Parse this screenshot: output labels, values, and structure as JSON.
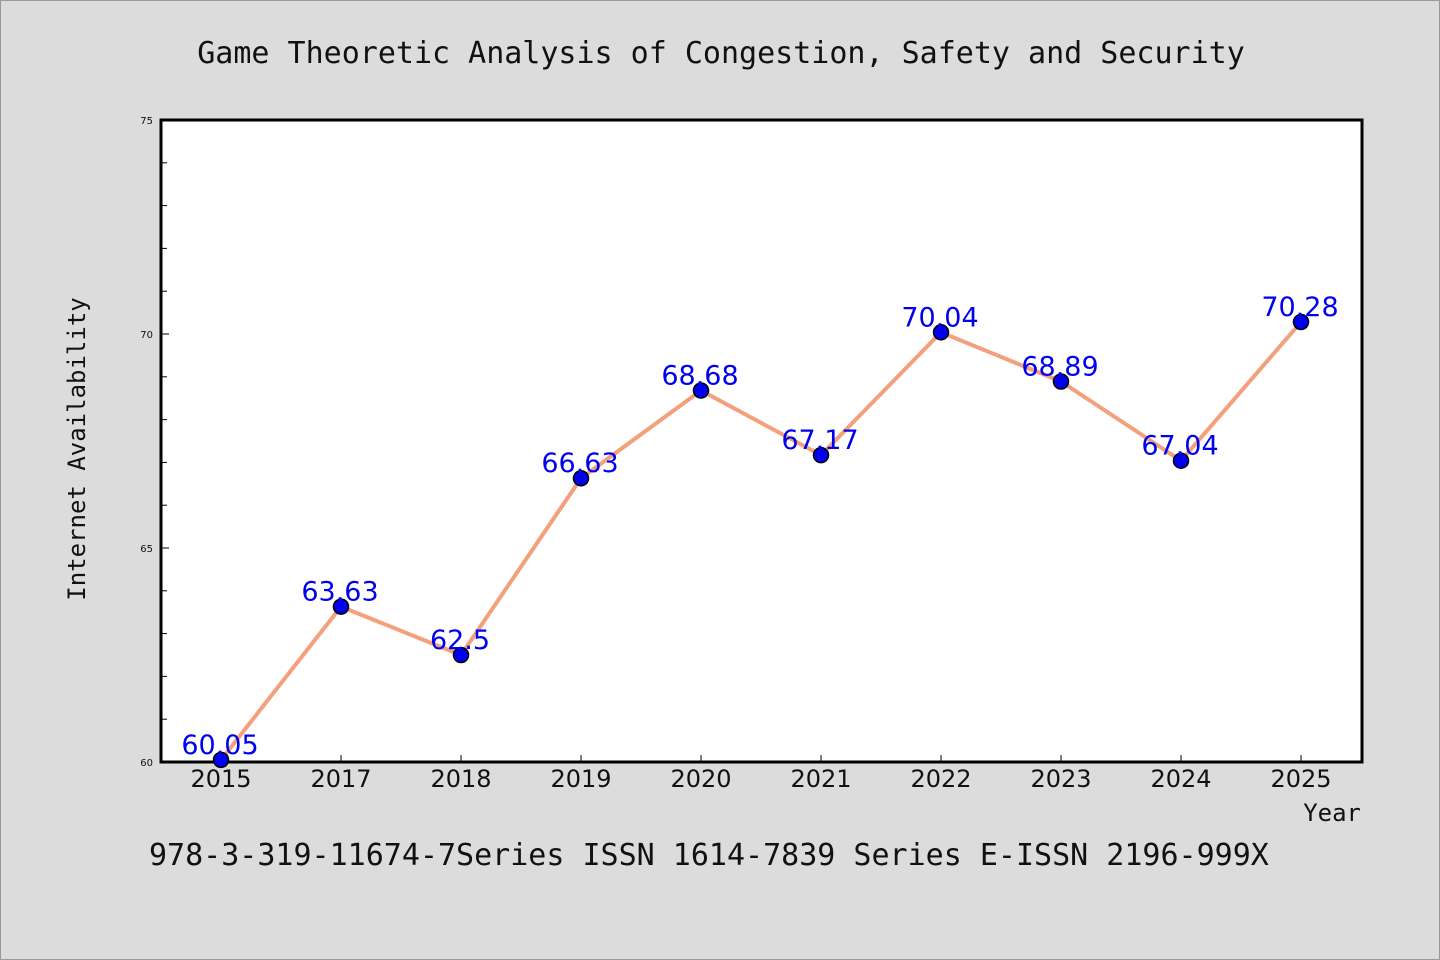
{
  "colors": {
    "background": "#dcdcdc",
    "plot_background": "#ffffff",
    "line": "#f4a07c",
    "marker": "#0000ee",
    "data_label": "#0000ee",
    "text": "#111111"
  },
  "chart_data": {
    "type": "line",
    "title": "Game Theoretic Analysis of Congestion, Safety and Security",
    "xlabel": "Year",
    "ylabel": "Internet Availability",
    "categories": [
      "2015",
      "2017",
      "2018",
      "2019",
      "2020",
      "2021",
      "2022",
      "2023",
      "2024",
      "2025"
    ],
    "series": [
      {
        "values": [
          60.05,
          63.63,
          62.5,
          66.63,
          68.68,
          67.17,
          70.04,
          68.89,
          67.04,
          70.28
        ],
        "labels": [
          "60.05",
          "63.63",
          "62.5",
          "66.63",
          "68.68",
          "67.17",
          "70.04",
          "68.89",
          "67.04",
          "70.28"
        ]
      }
    ],
    "ylim": [
      60,
      75
    ],
    "yticks": [
      "60",
      "65",
      "70",
      "75"
    ],
    "grid": false,
    "legend": "none"
  },
  "footer": {
    "text": "978-3-319-11674-7Series ISSN 1614-7839 Series E-ISSN 2196-999X"
  }
}
